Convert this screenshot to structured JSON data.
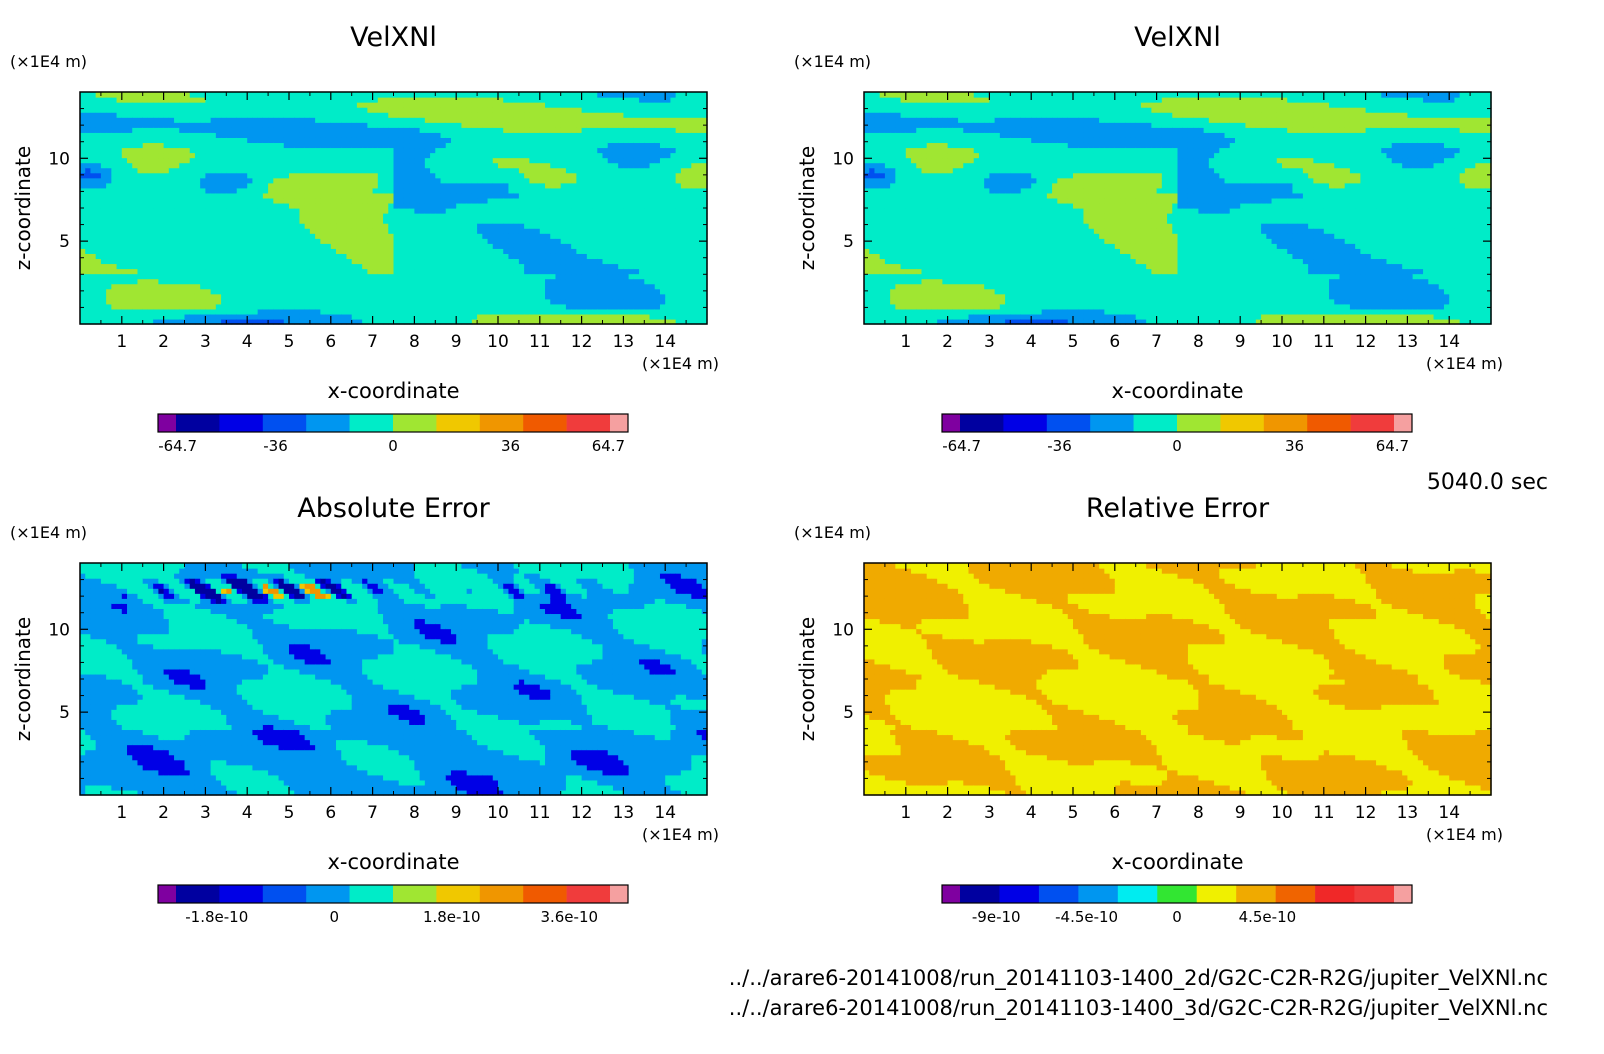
{
  "time_label": "5040.0 sec",
  "footer": {
    "line1": "../../arare6-20141008/run_20141103-1400_2d/G2C-C2R-R2G/jupiter_VelXNl.nc",
    "line2": "../../arare6-20141008/run_20141103-1400_3d/G2C-C2R-R2G/jupiter_VelXNl.nc"
  },
  "chart_data": [
    {
      "type": "heatmap",
      "title": "VelXNl",
      "xlabel": "x-coordinate",
      "ylabel": "z-coordinate",
      "x_unit": "(×1E4 m)",
      "y_unit": "(×1E4 m)",
      "xlim": [
        0,
        15
      ],
      "ylim": [
        0,
        14
      ],
      "x_ticks": [
        1,
        2,
        3,
        4,
        5,
        6,
        7,
        8,
        9,
        10,
        11,
        12,
        13,
        14
      ],
      "y_ticks": [
        5,
        10
      ],
      "field": "velocity",
      "colorbar": {
        "colors": [
          "#7f00a0",
          "#0000a0",
          "#0000e6",
          "#0050f0",
          "#0096f0",
          "#00ecc8",
          "#a0e632",
          "#f0c800",
          "#f09600",
          "#f05a00",
          "#f03c3c",
          "#f5a0a0"
        ],
        "tick_labels": [
          "-64.7",
          "-36",
          "0",
          "36",
          "64.7"
        ],
        "tick_positions": [
          0.0417,
          0.25,
          0.5,
          0.75,
          0.9583
        ]
      }
    },
    {
      "type": "heatmap",
      "title": "VelXNl",
      "xlabel": "x-coordinate",
      "ylabel": "z-coordinate",
      "x_unit": "(×1E4 m)",
      "y_unit": "(×1E4 m)",
      "xlim": [
        0,
        15
      ],
      "ylim": [
        0,
        14
      ],
      "x_ticks": [
        1,
        2,
        3,
        4,
        5,
        6,
        7,
        8,
        9,
        10,
        11,
        12,
        13,
        14
      ],
      "y_ticks": [
        5,
        10
      ],
      "field": "velocity",
      "colorbar": {
        "colors": [
          "#7f00a0",
          "#0000a0",
          "#0000e6",
          "#0050f0",
          "#0096f0",
          "#00ecc8",
          "#a0e632",
          "#f0c800",
          "#f09600",
          "#f05a00",
          "#f03c3c",
          "#f5a0a0"
        ],
        "tick_labels": [
          "-64.7",
          "-36",
          "0",
          "36",
          "64.7"
        ],
        "tick_positions": [
          0.0417,
          0.25,
          0.5,
          0.75,
          0.9583
        ]
      }
    },
    {
      "type": "heatmap",
      "title": "Absolute Error",
      "xlabel": "x-coordinate",
      "ylabel": "z-coordinate",
      "x_unit": "(×1E4 m)",
      "y_unit": "(×1E4 m)",
      "xlim": [
        0,
        15
      ],
      "ylim": [
        0,
        14
      ],
      "x_ticks": [
        1,
        2,
        3,
        4,
        5,
        6,
        7,
        8,
        9,
        10,
        11,
        12,
        13,
        14
      ],
      "y_ticks": [
        5,
        10
      ],
      "field": "abs",
      "colorbar": {
        "colors": [
          "#7f00a0",
          "#0000a0",
          "#0000e6",
          "#0050f0",
          "#0096f0",
          "#00ecc8",
          "#a0e632",
          "#f0c800",
          "#f09600",
          "#f05a00",
          "#f03c3c",
          "#f5a0a0"
        ],
        "tick_labels": [
          "-1.8e-10",
          "0",
          "1.8e-10",
          "3.6e-10"
        ],
        "tick_positions": [
          0.125,
          0.375,
          0.625,
          0.875
        ]
      }
    },
    {
      "type": "heatmap",
      "title": "Relative Error",
      "xlabel": "x-coordinate",
      "ylabel": "z-coordinate",
      "x_unit": "(×1E4 m)",
      "y_unit": "(×1E4 m)",
      "xlim": [
        0,
        15
      ],
      "ylim": [
        0,
        14
      ],
      "x_ticks": [
        1,
        2,
        3,
        4,
        5,
        6,
        7,
        8,
        9,
        10,
        11,
        12,
        13,
        14
      ],
      "y_ticks": [
        5,
        10
      ],
      "field": "rel",
      "colorbar": {
        "colors": [
          "#7f00a0",
          "#0000a0",
          "#0000e6",
          "#0050f0",
          "#0096f0",
          "#00ecf0",
          "#32e632",
          "#f0f000",
          "#f0aa00",
          "#f06400",
          "#f02828",
          "#f03c3c",
          "#f5a0a0"
        ],
        "tick_labels": [
          "-9e-10",
          "-4.5e-10",
          "0",
          "4.5e-10"
        ],
        "tick_positions": [
          0.1154,
          0.3077,
          0.5,
          0.6923
        ]
      }
    }
  ]
}
